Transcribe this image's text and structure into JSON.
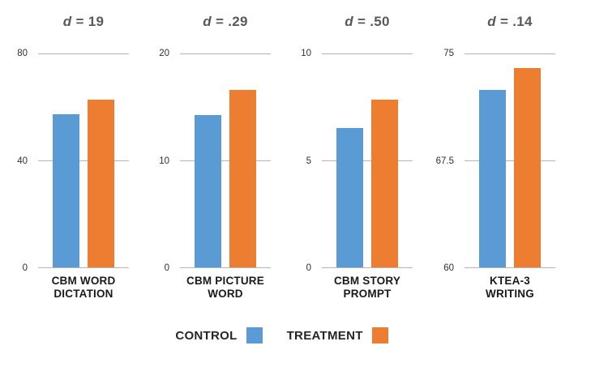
{
  "colors": {
    "control": "#5B9BD5",
    "treatment": "#ED7D31",
    "title_text": "#595959",
    "tick_text": "#303030",
    "gridline": "#B5B5B5",
    "category_text": "#1A1A1A"
  },
  "legend": {
    "items": [
      {
        "label": "CONTROL",
        "color_key": "control"
      },
      {
        "label": "TREATMENT",
        "color_key": "treatment"
      }
    ]
  },
  "chart_data": [
    {
      "type": "bar",
      "title": "d = 19",
      "d_symbol": "d",
      "separator": " = ",
      "d_value": "19",
      "category": "CBM WORD DICTATION",
      "category_lines": [
        "CBM WORD",
        "DICTATION"
      ],
      "series": [
        {
          "name": "CONTROL",
          "value": 57
        },
        {
          "name": "TREATMENT",
          "value": 62.5
        }
      ],
      "ylim": [
        0,
        80
      ],
      "ytick_labels": [
        "80",
        "40",
        "0"
      ],
      "grid": true,
      "legend_position": "bottom"
    },
    {
      "type": "bar",
      "title": "d = .29",
      "d_symbol": "d",
      "separator": " = ",
      "d_value": ".29",
      "category": "CBM PICTURE WORD",
      "category_lines": [
        "CBM PICTURE",
        "WORD"
      ],
      "series": [
        {
          "name": "CONTROL",
          "value": 14.2
        },
        {
          "name": "TREATMENT",
          "value": 16.5
        }
      ],
      "ylim": [
        0,
        20
      ],
      "ytick_labels": [
        "20",
        "10",
        "0"
      ],
      "grid": true,
      "legend_position": "bottom"
    },
    {
      "type": "bar",
      "title": "d = .50",
      "d_symbol": "d",
      "separator": " = ",
      "d_value": ".50",
      "category": "CBM STORY PROMPT",
      "category_lines": [
        "CBM STORY",
        "PROMPT"
      ],
      "series": [
        {
          "name": "CONTROL",
          "value": 6.5
        },
        {
          "name": "TREATMENT",
          "value": 7.8
        }
      ],
      "ylim": [
        0,
        10
      ],
      "ytick_labels": [
        "10",
        "5",
        "0"
      ],
      "grid": true,
      "legend_position": "bottom"
    },
    {
      "type": "bar",
      "title": "d = .14",
      "d_symbol": "d",
      "separator": " = ",
      "d_value": ".14",
      "category": "KTEA-3 WRITING",
      "category_lines": [
        "KTEA-3",
        "WRITING"
      ],
      "series": [
        {
          "name": "CONTROL",
          "value": 72.4
        },
        {
          "name": "TREATMENT",
          "value": 73.9
        }
      ],
      "ylim": [
        60,
        75
      ],
      "ytick_labels": [
        "75",
        "67.5",
        "60"
      ],
      "grid": true,
      "legend_position": "bottom"
    }
  ]
}
